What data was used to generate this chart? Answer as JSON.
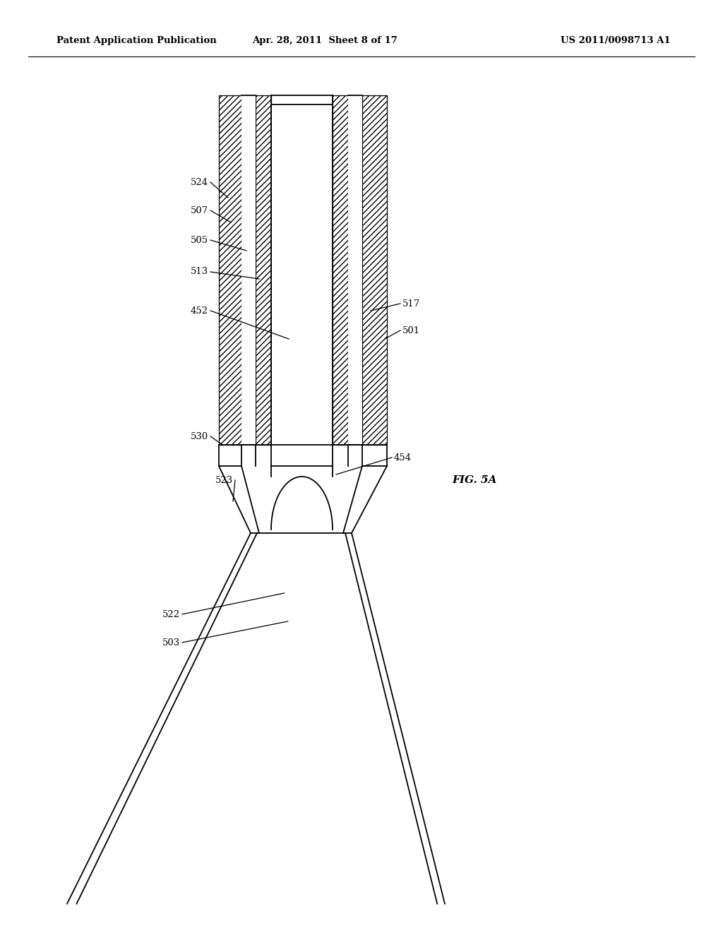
{
  "background_color": "#ffffff",
  "header_left": "Patent Application Publication",
  "header_center": "Apr. 28, 2011  Sheet 8 of 17",
  "header_right": "US 2011/0098713 A1",
  "fig_label": "FIG. 5A",
  "line_color": "#000000"
}
